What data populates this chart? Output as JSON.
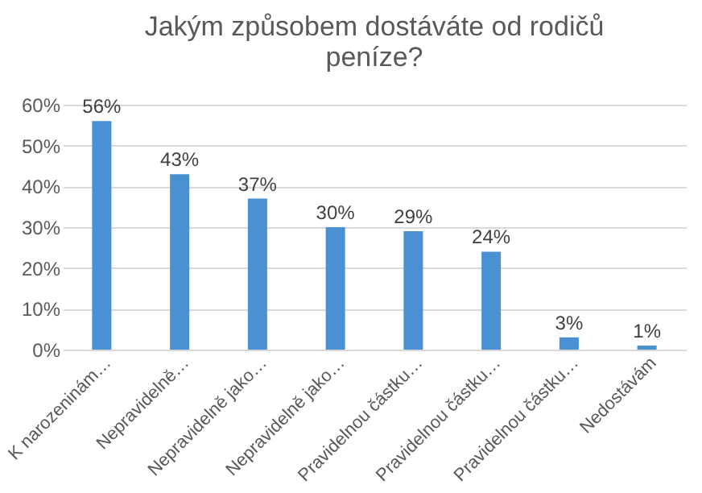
{
  "chart_data": {
    "type": "bar",
    "title": "Jakým způsobem dostáváte od rodičů\npeníze?",
    "categories": [
      "K narozeninám…",
      "Nepravidelně…",
      "Nepravidelně jako…",
      "Nepravidelně jako…",
      "Pravidelnou částku…",
      "Pravidelnou částku…",
      "Pravidelnou částku…",
      "Nedostávám"
    ],
    "values": [
      56,
      43,
      37,
      30,
      29,
      24,
      3,
      1
    ],
    "value_labels": [
      "56%",
      "43%",
      "37%",
      "30%",
      "29%",
      "24%",
      "3%",
      "1%"
    ],
    "color": "#4a90d2",
    "ylim": [
      0,
      60
    ],
    "yticks": [
      {
        "value": 0,
        "label": "0%"
      },
      {
        "value": 10,
        "label": "10%"
      },
      {
        "value": 20,
        "label": "20%"
      },
      {
        "value": 30,
        "label": "30%"
      },
      {
        "value": 40,
        "label": "40%"
      },
      {
        "value": 50,
        "label": "50%"
      },
      {
        "value": 60,
        "label": "60%"
      }
    ],
    "grid": "y"
  }
}
